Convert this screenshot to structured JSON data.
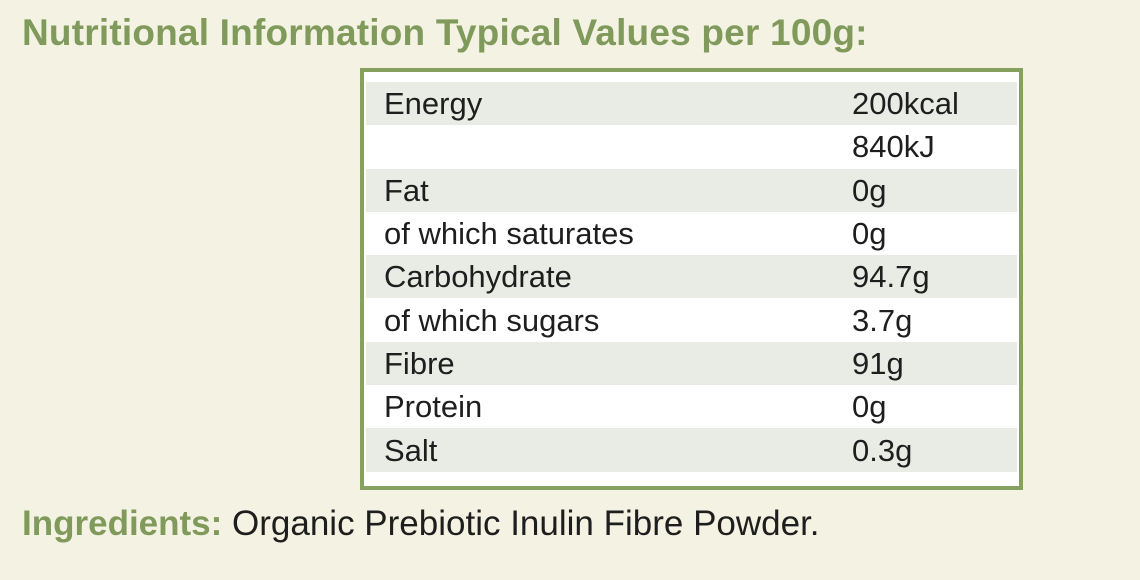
{
  "header": {
    "title": "Nutritional Information Typical Values per 100g:"
  },
  "table": {
    "rows": [
      {
        "label": "Energy",
        "value": "200kcal"
      },
      {
        "value": "840kJ"
      },
      {
        "label": "Fat",
        "value": "0g"
      },
      {
        "label": "of which saturates",
        "value": "0g"
      },
      {
        "label": "Carbohydrate",
        "value": "94.7g"
      },
      {
        "label": "of which sugars",
        "value": "3.7g"
      },
      {
        "label": "Fibre",
        "value": "91g"
      },
      {
        "label": "Protein",
        "value": "0g"
      },
      {
        "label": "Salt",
        "value": "0.3g"
      }
    ]
  },
  "ingredients": {
    "label": "Ingredients:",
    "text": "Organic Prebiotic Inulin Fibre Powder."
  }
}
